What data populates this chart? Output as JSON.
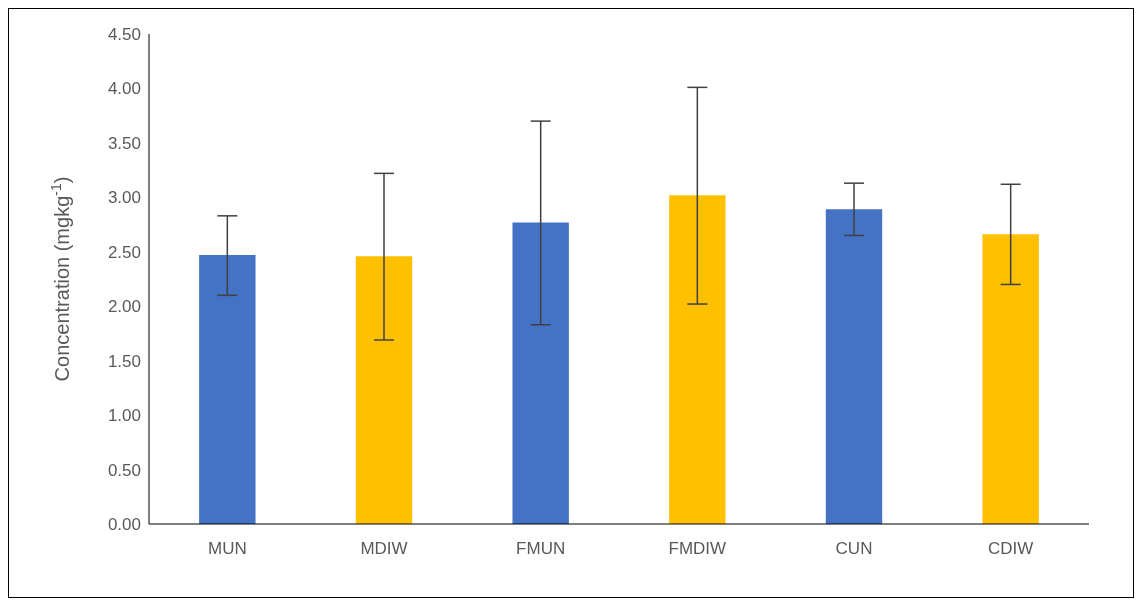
{
  "chart_data": {
    "type": "bar",
    "ylabel": "Concentration (mgkg$^{-1}$)",
    "categories": [
      "MUN",
      "MDIW",
      "FMUN",
      "FMDIW",
      "CUN",
      "CDIW"
    ],
    "values": [
      2.47,
      2.46,
      2.77,
      3.02,
      2.89,
      2.66
    ],
    "colors": [
      "#4472c4",
      "#ffc000",
      "#4472c4",
      "#ffc000",
      "#4472c4",
      "#ffc000"
    ],
    "errors": [
      [
        2.1,
        2.83
      ],
      [
        1.69,
        3.22
      ],
      [
        1.83,
        3.7
      ],
      [
        2.02,
        4.01
      ],
      [
        2.65,
        3.13
      ],
      [
        2.2,
        3.12
      ]
    ],
    "ylim": [
      0,
      4.5
    ],
    "yticks": [
      {
        "value": 0,
        "label": "0.00"
      },
      {
        "value": 0.5,
        "label": "0.50"
      },
      {
        "value": 1,
        "label": "1.00"
      },
      {
        "value": 1.5,
        "label": "1.50"
      },
      {
        "value": 2,
        "label": "2.00"
      },
      {
        "value": 2.5,
        "label": "2.50"
      },
      {
        "value": 3,
        "label": "3.00"
      },
      {
        "value": 3.5,
        "label": "3.50"
      },
      {
        "value": 4,
        "label": "4.00"
      },
      {
        "value": 4.5,
        "label": "4.50"
      }
    ],
    "grid": false,
    "legend": false
  }
}
